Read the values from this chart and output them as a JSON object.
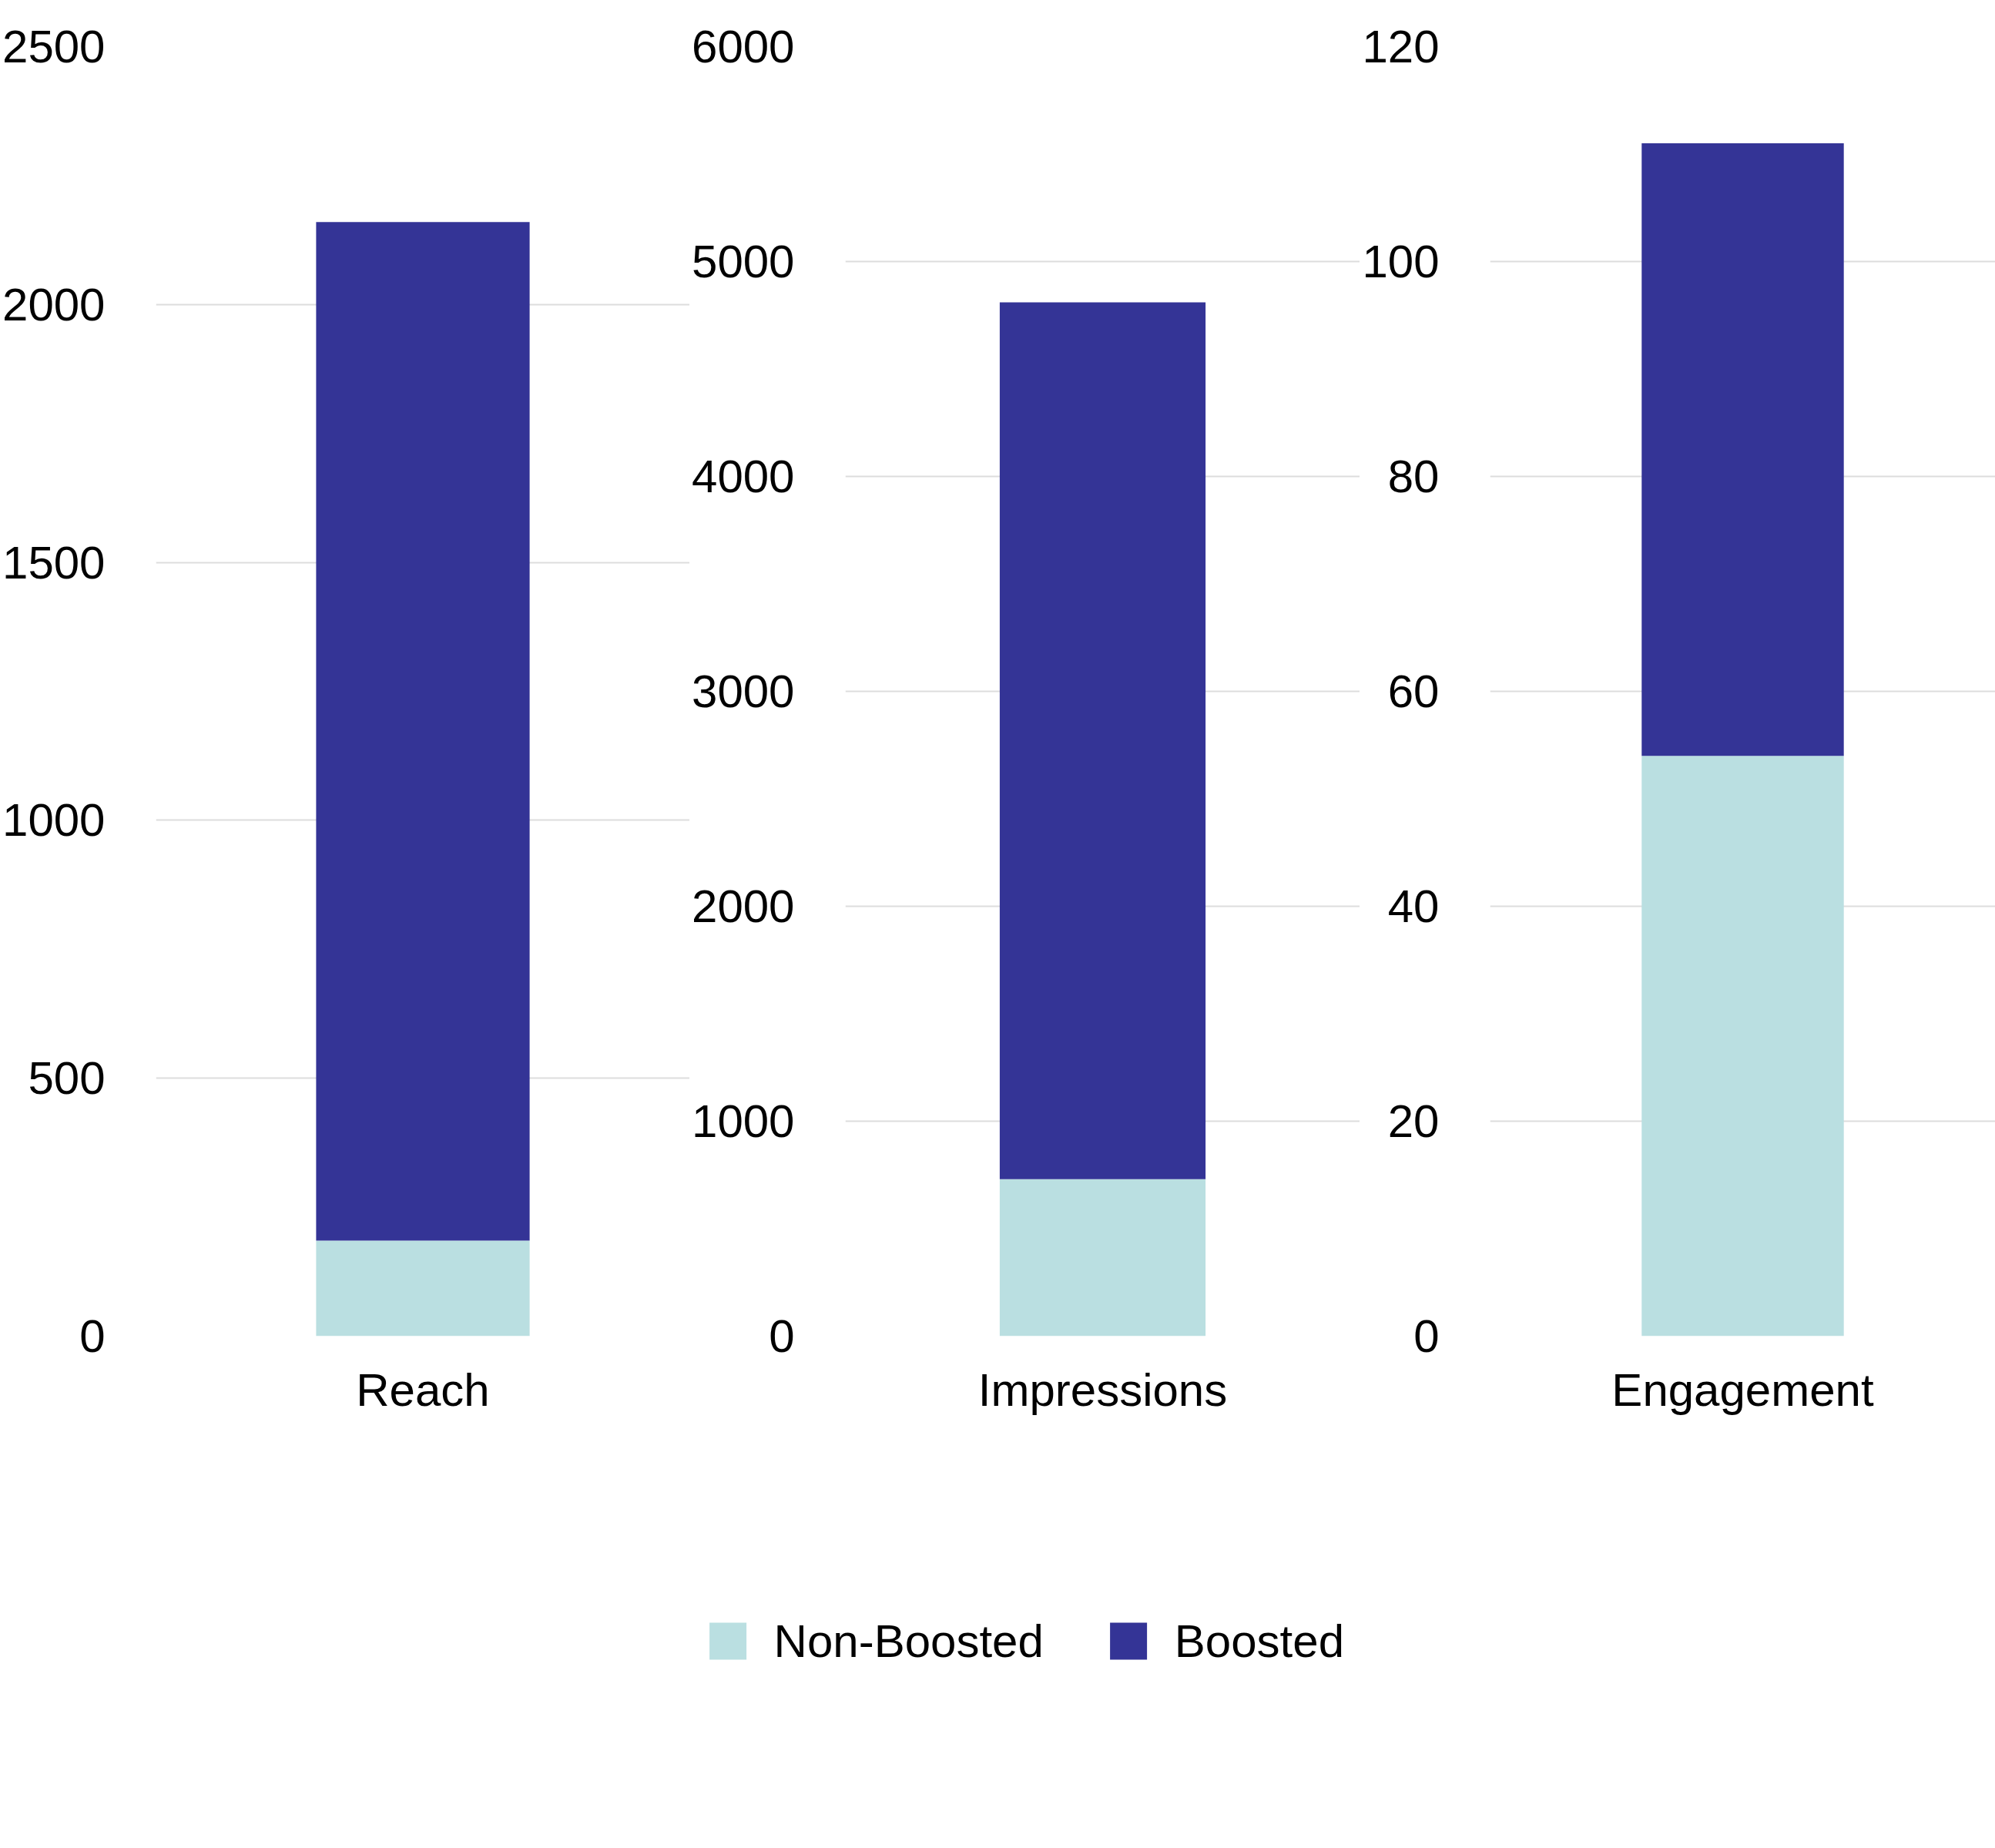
{
  "chart_data": [
    {
      "type": "bar",
      "stacked": true,
      "categories": [
        "Reach"
      ],
      "ylim": [
        0,
        2500
      ],
      "yticks": [
        0,
        500,
        1000,
        1500,
        2000,
        2500
      ],
      "grid": "y",
      "series": [
        {
          "color": "#badfe1",
          "values": [
            185
          ]
        },
        {
          "color": "#343496",
          "values": [
            1975
          ]
        }
      ]
    },
    {
      "type": "bar",
      "stacked": true,
      "categories": [
        "Impressions"
      ],
      "ylim": [
        0,
        6000
      ],
      "yticks": [
        0,
        1000,
        2000,
        3000,
        4000,
        5000,
        6000
      ],
      "grid": "y",
      "legend": "bottom",
      "series": [
        {
          "name": "Non-Boosted",
          "color": "#badfe1",
          "values": [
            730
          ]
        },
        {
          "name": "Boosted",
          "color": "#343496",
          "values": [
            4080
          ]
        }
      ]
    },
    {
      "type": "bar",
      "stacked": true,
      "categories": [
        "Engagement"
      ],
      "ylim": [
        0,
        120
      ],
      "yticks": [
        0,
        20,
        40,
        60,
        80,
        100,
        120
      ],
      "grid": "y",
      "series": [
        {
          "color": "#badfe1",
          "values": [
            54
          ]
        },
        {
          "color": "#343496",
          "values": [
            57
          ]
        }
      ]
    }
  ]
}
